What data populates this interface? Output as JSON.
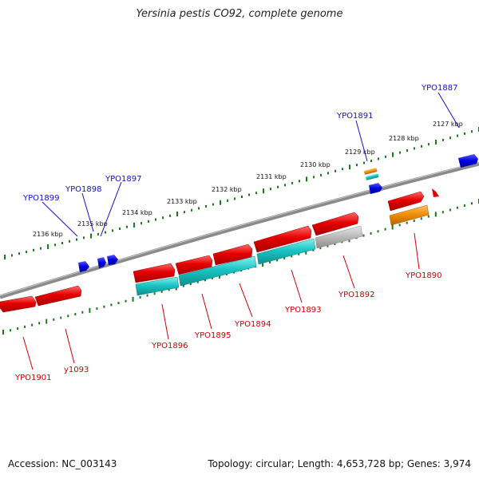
{
  "title": "Yersinia pestis CO92, complete genome",
  "footer": {
    "accession": "Accession: NC_003143",
    "summary": "Topology: circular; Length: 4,653,728 bp; Genes: 3,974"
  },
  "colors": {
    "backbone": "#8a8a8a",
    "tick": "#1a7a1a",
    "cds_red": "#e50000",
    "cds_cyan": "#19c4c4",
    "cds_gray": "#b8b8b8",
    "cds_orange": "#f08a00",
    "small_blue": "#0000e0",
    "label_blue": "#1010c8",
    "label_red": "#cc0000"
  },
  "scale_labels": [
    "2127 kbp",
    "2128 kbp",
    "2129 kbp",
    "2130 kbp",
    "2131 kbp",
    "2132 kbp",
    "2133 kbp",
    "2134 kbp",
    "2135 kbp",
    "2136 kbp"
  ],
  "genes_outer": [
    "YPO1887",
    "YPO1891",
    "YPO1897",
    "YPO1898",
    "YPO1899"
  ],
  "genes_inner": [
    "YPO1890",
    "YPO1892",
    "YPO1893",
    "YPO1894",
    "YPO1895",
    "YPO1896",
    "y1093",
    "YPO1901"
  ]
}
